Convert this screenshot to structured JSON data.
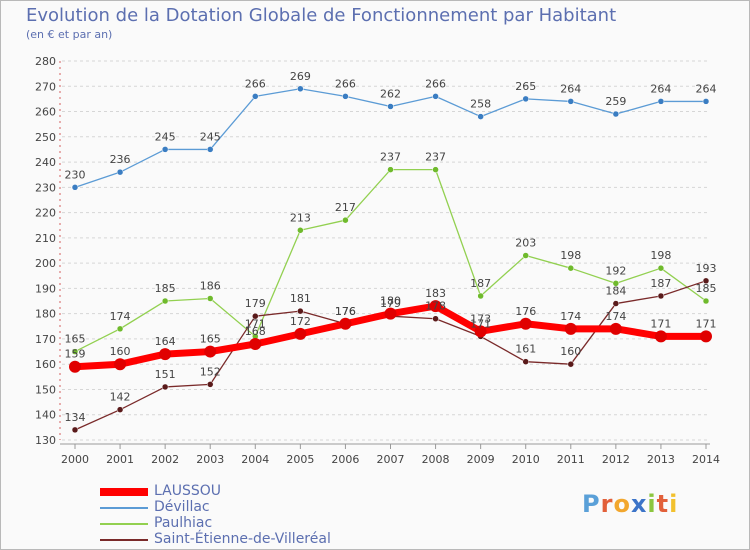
{
  "title": "Evolution de la Dotation Globale de Fonctionnement par Habitant",
  "subtitle": "(en € et par an)",
  "logo": {
    "text": "Proxiti",
    "letters": [
      {
        "ch": "P",
        "color": "#5aa0d8"
      },
      {
        "ch": "r",
        "color": "#e2603a"
      },
      {
        "ch": "o",
        "color": "#f2a72e"
      },
      {
        "ch": "x",
        "color": "#3c74c8"
      },
      {
        "ch": "i",
        "color": "#8cc63f"
      },
      {
        "ch": "t",
        "color": "#e2603a"
      },
      {
        "ch": "i",
        "color": "#f2c12e"
      }
    ]
  },
  "chart_data": {
    "type": "line",
    "title": "Evolution de la Dotation Globale de Fonctionnement par Habitant",
    "subtitle": "(en € et par an)",
    "xlabel": "",
    "ylabel": "",
    "x": [
      "2000",
      "2001",
      "2002",
      "2003",
      "2004",
      "2005",
      "2006",
      "2007",
      "2008",
      "2009",
      "2010",
      "2011",
      "2012",
      "2013",
      "2014"
    ],
    "ylim": [
      130,
      280
    ],
    "yticks": [
      130,
      140,
      150,
      160,
      170,
      180,
      190,
      200,
      210,
      220,
      230,
      240,
      250,
      260,
      270,
      280
    ],
    "grid": "horizontal dashed",
    "legend_position": "bottom-left",
    "series": [
      {
        "name": "Dévillac",
        "color": "#5b9bd5",
        "point_color": "#3a7dc2",
        "values": [
          230,
          236,
          245,
          245,
          266,
          269,
          266,
          262,
          266,
          258,
          265,
          264,
          259,
          264,
          264
        ]
      },
      {
        "name": "Paulhiac",
        "color": "#92d050",
        "point_color": "#6fba2c",
        "values": [
          165,
          174,
          185,
          186,
          171,
          213,
          217,
          237,
          237,
          187,
          203,
          198,
          192,
          198,
          185
        ]
      },
      {
        "name": "Saint-Étienne-de-Villeréal",
        "color": "#7a2a2a",
        "point_color": "#5a1a1a",
        "values": [
          134,
          142,
          151,
          152,
          179,
          181,
          176,
          179,
          178,
          171,
          161,
          160,
          184,
          187,
          193
        ]
      },
      {
        "name": "LAUSSOU",
        "color": "#ff0000",
        "point_color": "#e00000",
        "values": [
          159,
          160,
          164,
          165,
          168,
          172,
          176,
          180,
          183,
          173,
          176,
          174,
          174,
          171,
          171
        ]
      }
    ],
    "data_labels": [
      [
        "230",
        "236",
        "245",
        "245",
        "266",
        "269",
        "266",
        "262",
        "266",
        "258",
        "265",
        "264",
        "259",
        "264",
        "264"
      ],
      [
        "165",
        "174",
        "185",
        "186",
        "171",
        "213",
        "217",
        "237",
        "237",
        "187",
        "203",
        "198",
        "192",
        "198",
        "185"
      ],
      [
        "134",
        "142",
        "151",
        "152",
        "179",
        "181",
        "176",
        "179",
        "178",
        "171",
        "161",
        "160",
        "184",
        "187",
        "193"
      ],
      [
        "159",
        "160",
        "164",
        "165",
        "168",
        "172",
        "176",
        "180",
        "183",
        "173",
        "176",
        "174",
        "174",
        "171",
        "171"
      ]
    ]
  },
  "legend": [
    {
      "name": "LAUSSOU",
      "color": "#ff0000",
      "thickness": 8
    },
    {
      "name": "Dévillac",
      "color": "#5b9bd5",
      "thickness": 2
    },
    {
      "name": "Paulhiac",
      "color": "#92d050",
      "thickness": 2
    },
    {
      "name": "Saint-Étienne-de-Villeréal",
      "color": "#7a2a2a",
      "thickness": 2
    }
  ]
}
